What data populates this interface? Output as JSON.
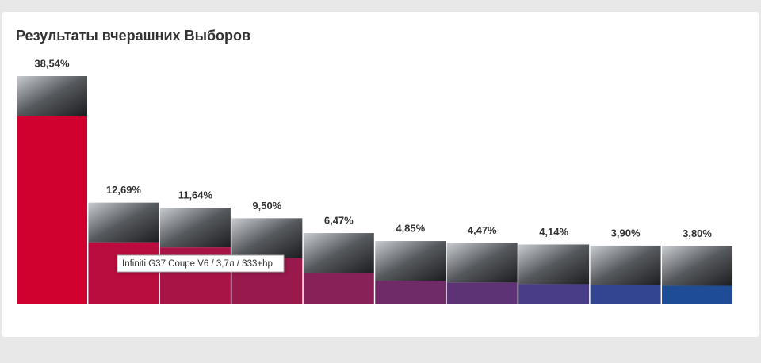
{
  "chart_data": {
    "type": "bar",
    "title": "Результаты вчерашних Выборов",
    "categories": [
      null,
      null,
      null,
      null,
      null,
      null,
      null,
      null,
      null,
      null
    ],
    "values": [
      38.54,
      12.69,
      11.64,
      9.5,
      6.47,
      4.85,
      4.47,
      4.14,
      3.9,
      3.8
    ],
    "value_labels": [
      "38,54%",
      "12,69%",
      "11,64%",
      "9,50%",
      "6,47%",
      "4,85%",
      "4,47%",
      "4,14%",
      "3,90%",
      "3,80%"
    ],
    "colors": [
      "#d0002f",
      "#b80d3e",
      "#a91446",
      "#98194c",
      "#872158",
      "#6f2a68",
      "#5e3376",
      "#483d86",
      "#33458f",
      "#1f4c96"
    ],
    "annotation": "Infiniti G37 Coupe V6 / 3,7л / 333+hp"
  }
}
